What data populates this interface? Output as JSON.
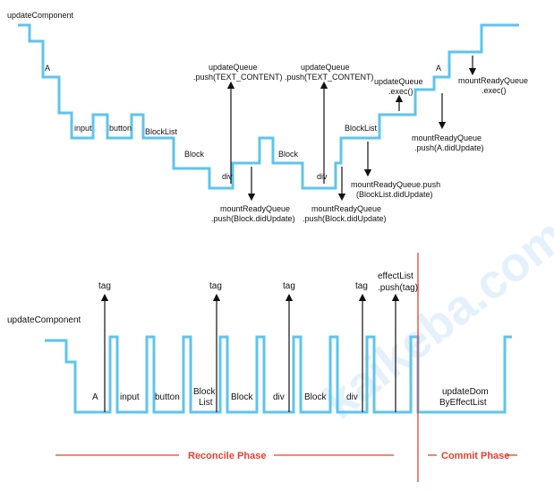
{
  "top": {
    "root_label": "updateComponent",
    "node_labels": {
      "a": "A",
      "input": "input",
      "button": "button",
      "blocklist": "BlockList",
      "block1": "Block",
      "div1": "div",
      "block2": "Block",
      "div2": "div",
      "blocklist2": "BlockList",
      "a2": "A"
    },
    "annotations": {
      "uq1_line1": "updateQueue",
      "uq1_line2": ".push(TEXT_CONTENT)",
      "uq2_line1": "updateQueue",
      "uq2_line2": ".push(TEXT_CONTENT)",
      "uq3_line1": "updateQueue",
      "uq3_line2": ".exec()",
      "mr1_line1": "mountReadyQueue",
      "mr1_line2": ".push(Block.didUpdate)",
      "mr2_line1": "mountReadyQueue",
      "mr2_line2": ".push(Block.didUpdate)",
      "mr3_line1": "mountReadyQueue.push",
      "mr3_line2": "(BlockList.didUpdate)",
      "mr4_line1": "mountReadyQueue",
      "mr4_line2": ".push(A.didUpdate)",
      "mr5_line1": "mountReadyQueue",
      "mr5_line2": ".exec()"
    }
  },
  "bottom": {
    "root_label": "updateComponent",
    "tags": [
      "tag",
      "tag",
      "tag",
      "tag"
    ],
    "effect_line1": "effectList",
    "effect_line2": ".push(tag)",
    "cells": {
      "a": "A",
      "input": "input",
      "button": "button",
      "blocklist_l1": "Block",
      "blocklist_l2": "List",
      "block1": "Block",
      "div1": "div",
      "block2": "Block",
      "div2": "div",
      "update_l1": "updateDom",
      "update_l2": "ByEffectList"
    },
    "phases": {
      "reconcile": "Reconcile Phase",
      "commit": "Commit Phase"
    }
  },
  "colors": {
    "line": "#5ec4ee",
    "accent": "#e8412f",
    "text": "#111111"
  }
}
